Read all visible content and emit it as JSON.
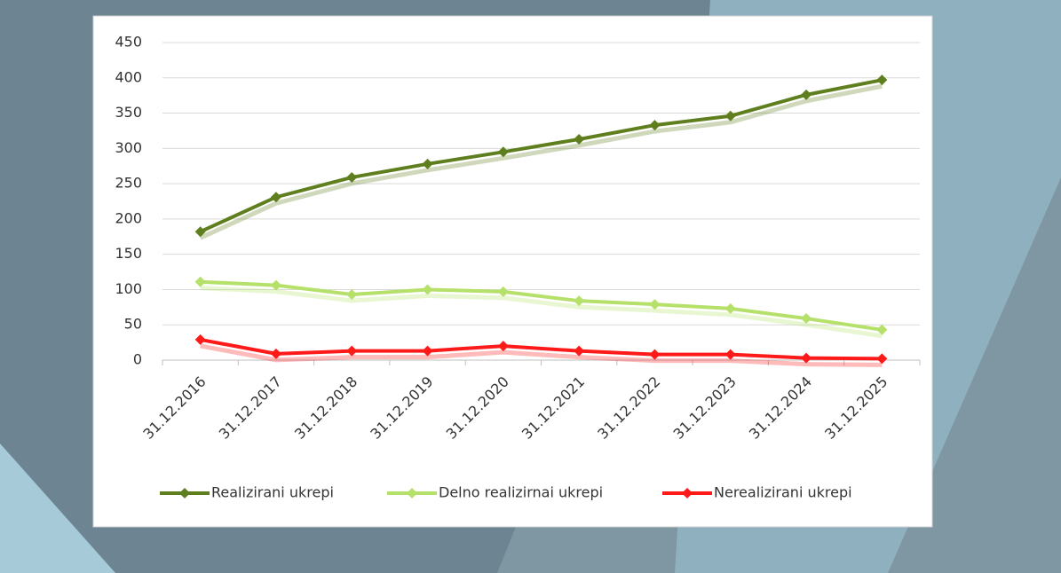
{
  "chart_data": {
    "type": "line",
    "categories": [
      "31.12.2016",
      "31.12.2017",
      "31.12.2018",
      "31.12.2019",
      "31.12.2020",
      "31.12.2021",
      "31.12.2022",
      "31.12.2023",
      "31.12.2024",
      "31.12.2025"
    ],
    "series": [
      {
        "name": "Realizirani ukrepi",
        "color": "#5f7f1f",
        "values": [
          182,
          231,
          259,
          278,
          295,
          313,
          333,
          346,
          376,
          397
        ]
      },
      {
        "name": "Delno realizirnai ukrepi",
        "color": "#b5e06a",
        "values": [
          111,
          106,
          93,
          100,
          97,
          84,
          79,
          73,
          59,
          43
        ]
      },
      {
        "name": "Nerealizirani ukrepi",
        "color": "#ff1a1a",
        "values": [
          29,
          9,
          13,
          13,
          20,
          13,
          8,
          8,
          3,
          2
        ]
      }
    ],
    "ylim": [
      0,
      450
    ],
    "yticks": [
      0,
      50,
      100,
      150,
      200,
      250,
      300,
      350,
      400,
      450
    ],
    "grid": true,
    "legend": "bottom"
  }
}
